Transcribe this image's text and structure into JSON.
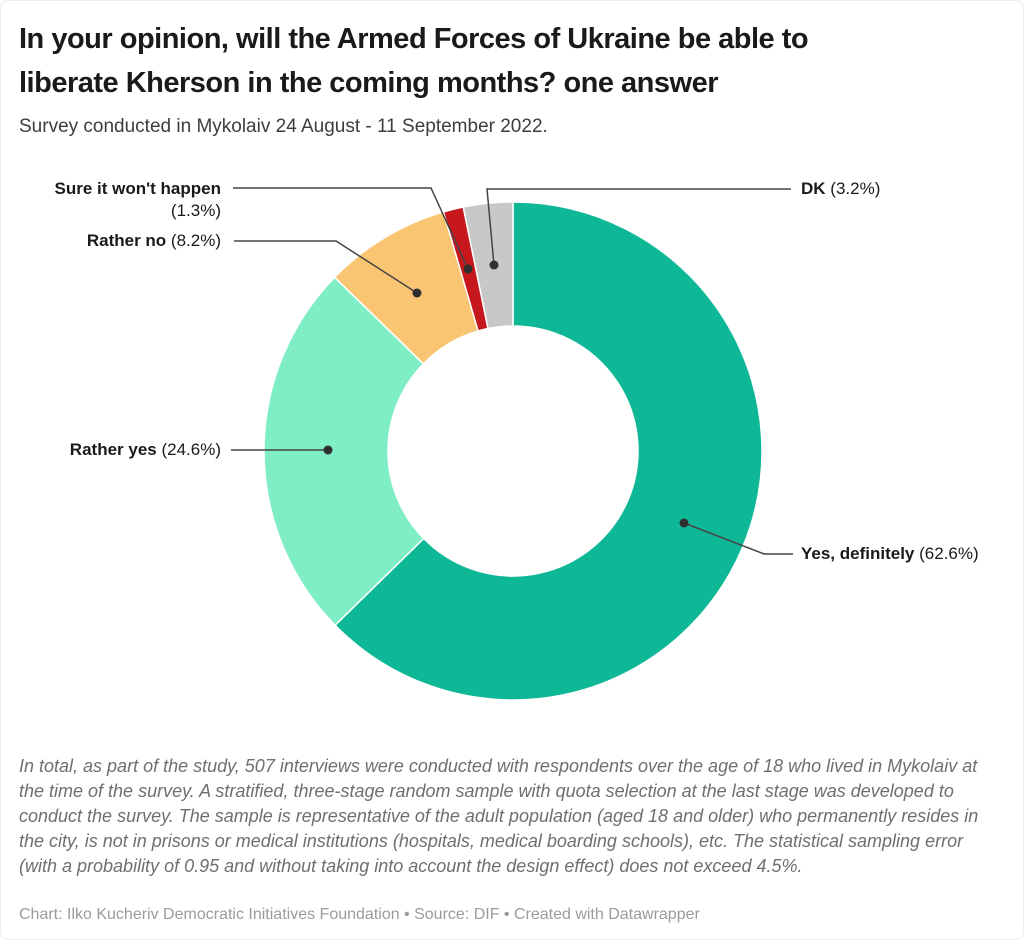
{
  "header": {
    "title_lines": [
      "In your opinion, will the Armed Forces of Ukraine be able to",
      "liberate Kherson in the coming months? one answer"
    ],
    "subtitle": "Survey conducted in Mykolaiv 24 August - 11 September 2022."
  },
  "callouts": {
    "sure": {
      "name": "Sure it won't happen",
      "value": "(1.3%)"
    },
    "rather_no": {
      "name": "Rather no",
      "value": "(8.2%)"
    },
    "rather_yes": {
      "name": "Rather yes",
      "value": "(24.6%)"
    },
    "dk": {
      "name": "DK",
      "value": "(3.2%)"
    },
    "yes": {
      "name": "Yes, definitely",
      "value": "(62.6%)"
    }
  },
  "footer": {
    "note": "In total, as part of the study, 507 interviews were conducted with respondents over the age of 18 who lived in Mykolaiv at the time of the survey. A stratified, three-stage random sample with quota selection at the last stage was developed to conduct the survey. The sample is representative of the adult population (aged 18 and older) who permanently resides in the city, is not in prisons or medical institutions (hospitals, medical boarding schools), etc. The statistical sampling error (with a probability of 0.95 and without taking into account the design effect) does not exceed 4.5%.",
    "attribution": "Chart: Ilko Kucheriv Democratic Initiatives Foundation • Source: DIF • Created with Datawrapper"
  },
  "chart_data": {
    "type": "pie",
    "subtype": "donut",
    "title": "In your opinion, will the Armed Forces of Ukraine be able to liberate Kherson in the coming months? one answer",
    "subtitle": "Survey conducted in Mykolaiv 24 August - 11 September 2022.",
    "categories": [
      "Yes, definitely",
      "Rather yes",
      "Rather no",
      "Sure it won't happen",
      "DK"
    ],
    "values": [
      62.6,
      24.6,
      8.2,
      1.3,
      3.2
    ],
    "unit": "%",
    "colors": [
      "#0EB795",
      "#7FEEC5",
      "#FAC573",
      "#C5171C",
      "#C8C8C8"
    ],
    "start_angle_deg": 0,
    "direction": "clockwise",
    "inner_radius_ratio": 0.5,
    "legend": "none",
    "label_style": "callout leader lines, bold category name with (percent)"
  }
}
